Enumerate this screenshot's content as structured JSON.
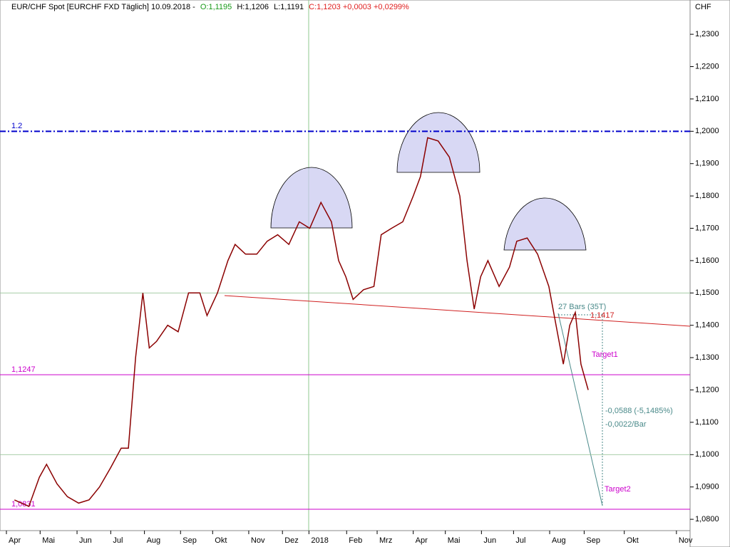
{
  "chart_data": {
    "type": "line",
    "header": {
      "instrument": "EUR/CHF Spot [EURCHF FXD  Täglich] 10.09.2018 -",
      "open": "O:1,1195",
      "high": "H:1,1206",
      "low": "L:1,1191",
      "close": "C:1,1203 +0,0003 +0,0299%"
    },
    "y_unit": "CHF",
    "x": [
      1.8,
      3.6,
      4.9,
      5.8,
      7.1,
      8.4,
      9.8,
      11.1,
      12.4,
      13.8,
      15.1,
      16.0,
      16.9,
      17.8,
      18.6,
      19.5,
      20.9,
      22.2,
      23.5,
      24.9,
      25.8,
      27.1,
      28.4,
      29.3,
      30.6,
      32.0,
      33.3,
      34.6,
      36.0,
      37.3,
      38.6,
      40.0,
      41.3,
      42.2,
      43.1,
      44.0,
      45.3,
      46.6,
      47.5,
      48.8,
      50.2,
      51.5,
      52.4,
      53.3,
      54.6,
      56.0,
      57.3,
      58.2,
      59.1,
      59.9,
      60.8,
      62.2,
      63.5,
      64.4,
      65.7,
      67.0,
      68.4,
      69.3,
      70.2,
      71.0,
      71.7,
      72.4,
      73.3
    ],
    "series": [
      {
        "name": "EUR/CHF",
        "color": "#8b0000",
        "values": [
          1.086,
          1.084,
          1.093,
          1.097,
          1.091,
          1.087,
          1.085,
          1.086,
          1.09,
          1.096,
          1.102,
          1.102,
          1.13,
          1.15,
          1.133,
          1.135,
          1.14,
          1.138,
          1.15,
          1.15,
          1.143,
          1.15,
          1.16,
          1.165,
          1.162,
          1.162,
          1.166,
          1.168,
          1.165,
          1.172,
          1.17,
          1.178,
          1.172,
          1.16,
          1.155,
          1.148,
          1.151,
          1.152,
          1.168,
          1.17,
          1.172,
          1.18,
          1.186,
          1.198,
          1.197,
          1.192,
          1.18,
          1.16,
          1.145,
          1.155,
          1.16,
          1.152,
          1.158,
          1.166,
          1.167,
          1.162,
          1.152,
          1.14,
          1.128,
          1.14,
          1.144,
          1.128,
          1.12
        ]
      }
    ],
    "xlim": [
      0,
      86
    ],
    "xticks": [
      {
        "value": 0.8,
        "label": "Apr"
      },
      {
        "value": 5.0,
        "label": "Mai"
      },
      {
        "value": 9.6,
        "label": "Jun"
      },
      {
        "value": 13.8,
        "label": "Jul"
      },
      {
        "value": 18.0,
        "label": "Aug"
      },
      {
        "value": 22.5,
        "label": "Sep"
      },
      {
        "value": 26.5,
        "label": "Okt"
      },
      {
        "value": 31.0,
        "label": "Nov"
      },
      {
        "value": 35.2,
        "label": "Dez"
      },
      {
        "value": 38.5,
        "label": "2018"
      },
      {
        "value": 43.2,
        "label": "Feb"
      },
      {
        "value": 47.0,
        "label": "Mrz"
      },
      {
        "value": 51.5,
        "label": "Apr"
      },
      {
        "value": 55.5,
        "label": "Mai"
      },
      {
        "value": 60.0,
        "label": "Jun"
      },
      {
        "value": 64.0,
        "label": "Jul"
      },
      {
        "value": 68.5,
        "label": "Aug"
      },
      {
        "value": 72.8,
        "label": "Sep"
      },
      {
        "value": 77.8,
        "label": "Okt"
      },
      {
        "value": 84.3,
        "label": "Nov"
      }
    ],
    "ylim": [
      1.0765,
      1.2406
    ],
    "yticks": [
      {
        "value": 1.23,
        "label": "1,2300"
      },
      {
        "value": 1.22,
        "label": "1,2200"
      },
      {
        "value": 1.21,
        "label": "1,2100"
      },
      {
        "value": 1.2,
        "label": "1,2000"
      },
      {
        "value": 1.19,
        "label": "1,1900"
      },
      {
        "value": 1.18,
        "label": "1,1800"
      },
      {
        "value": 1.17,
        "label": "1,1700"
      },
      {
        "value": 1.16,
        "label": "1,1600"
      },
      {
        "value": 1.15,
        "label": "1,1500"
      },
      {
        "value": 1.14,
        "label": "1,1400"
      },
      {
        "value": 1.13,
        "label": "1,1300"
      },
      {
        "value": 1.12,
        "label": "1,1200"
      },
      {
        "value": 1.11,
        "label": "1,1100"
      },
      {
        "value": 1.1,
        "label": "1,1000"
      },
      {
        "value": 1.09,
        "label": "1,0900"
      },
      {
        "value": 1.08,
        "label": "1,0800"
      }
    ],
    "hlines": [
      {
        "value": 1.2,
        "label": "1.2",
        "color": "#0000cc",
        "dash": "8 3 2 3"
      },
      {
        "value": 1.1247,
        "label": "1,1247",
        "color": "#cc00cc",
        "dash": "none"
      },
      {
        "value": 1.0831,
        "label": "1,0831",
        "color": "#cc00cc",
        "dash": "none"
      }
    ],
    "annotations": {
      "bars": "27 Bars (35T)",
      "level": "1,1417",
      "target1": "Target1",
      "target2": "Target2",
      "change": "-0,0588 (-5,1485%)",
      "per_bar": "-0,0022/Bar"
    }
  }
}
